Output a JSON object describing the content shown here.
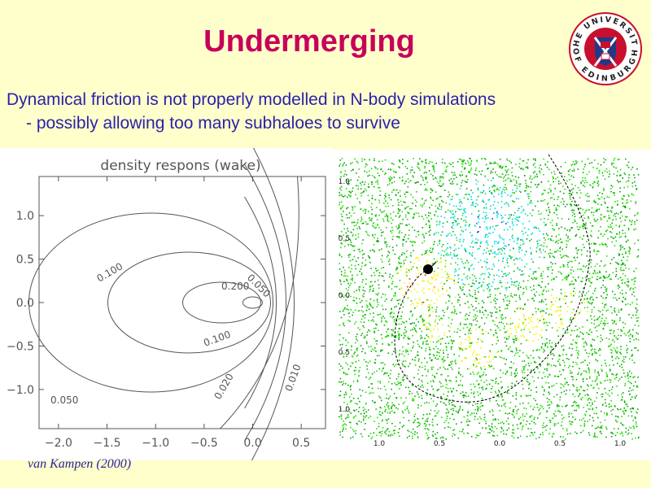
{
  "slide": {
    "title": "Undermerging",
    "bullet_line1": "Dynamical friction is not properly modelled in N-body simulations",
    "bullet_line2": "- possibly allowing too many subhaloes to survive",
    "credit": "van Kampen (2000)"
  },
  "logo": {
    "top_text": "THE UNIVERSITY",
    "bottom_text": "OF EDINBURGH",
    "colors": {
      "ring": "#c8102e",
      "shield": "#1e3a8a",
      "cross": "#ffffff",
      "castle": "#c8102e"
    }
  },
  "chart_data": [
    {
      "type": "contour",
      "title": "density respons (wake)",
      "xlim": [
        -2.2,
        0.75
      ],
      "ylim": [
        -1.45,
        1.45
      ],
      "x_ticks": [
        -2.0,
        -1.5,
        -1.0,
        -0.5,
        0.0,
        0.5
      ],
      "x_tick_labels": [
        "−2.0",
        "−1.5",
        "−1.0",
        "−0.5",
        "0.0",
        "0.5"
      ],
      "y_ticks": [
        1.0,
        0.5,
        0.0,
        -0.5,
        -1.0
      ],
      "y_tick_labels": [
        "1.0",
        "0.5",
        "0.0",
        "−0.5",
        "−1.0"
      ],
      "contour_labels": [
        "0.100",
        "0.050",
        "0.200",
        "0.100",
        "0.050",
        "0.020",
        "0.010"
      ]
    },
    {
      "type": "scatter",
      "colormap": [
        "#00aa00",
        "#22dd00",
        "#ffee00",
        "#ff2200",
        "#00dddd",
        "#2233cc"
      ],
      "x_tick_labels": [
        "1.0",
        "0.5",
        "0.0",
        "0.5",
        "1.0"
      ],
      "y_tick_labels": [
        "1.0",
        "0.5",
        "0.0",
        "0.5",
        "1.0"
      ]
    }
  ]
}
